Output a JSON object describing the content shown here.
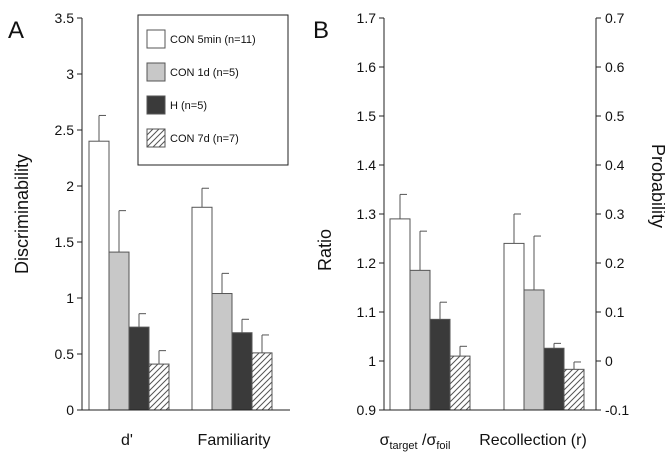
{
  "chart_data": [
    {
      "panel": "A",
      "type": "bar",
      "ylabel": "Discriminability",
      "ylim": [
        0,
        3.5
      ],
      "yticks": [
        "0",
        "0.5",
        "1",
        "1.5",
        "2",
        "2.5",
        "3",
        "3.5"
      ],
      "categories": [
        "d'",
        "Familiarity"
      ],
      "series": [
        {
          "name": "CON 5min (n=11)",
          "fill": "#ffffff",
          "pattern": "none",
          "values": [
            2.4,
            1.81
          ],
          "errors": [
            0.23,
            0.17
          ]
        },
        {
          "name": "CON 1d (n=5)",
          "fill": "#c8c8c8",
          "pattern": "none",
          "values": [
            1.41,
            1.04
          ],
          "errors": [
            0.37,
            0.18
          ]
        },
        {
          "name": "H (n=5)",
          "fill": "#3a3a3a",
          "pattern": "none",
          "values": [
            0.74,
            0.69
          ],
          "errors": [
            0.12,
            0.12
          ]
        },
        {
          "name": "CON 7d (n=7)",
          "fill": "#ffffff",
          "pattern": "hatch",
          "values": [
            0.41,
            0.51
          ],
          "errors": [
            0.12,
            0.16
          ]
        }
      ],
      "legend_position": "top-right"
    },
    {
      "panel": "B",
      "type": "bar",
      "ylabel": "Ratio",
      "y2label": "Probability",
      "ylim": [
        0.9,
        1.7
      ],
      "yticks": [
        "0.9",
        "1",
        "1.1",
        "1.2",
        "1.3",
        "1.4",
        "1.5",
        "1.6",
        "1.7"
      ],
      "y2lim": [
        -0.1,
        0.7
      ],
      "y2ticks": [
        "-0.1",
        "0",
        "0.1",
        "0.2",
        "0.3",
        "0.4",
        "0.5",
        "0.6",
        "0.7"
      ],
      "categories": [
        {
          "base": "σ",
          "sub1": "target",
          "mid": " /σ",
          "sub2": "foil"
        },
        "Recollection (r)"
      ],
      "series": [
        {
          "name": "CON 5min (n=11)",
          "fill": "#ffffff",
          "pattern": "none",
          "values": [
            1.29,
            1.24
          ],
          "errors": [
            0.05,
            0.06
          ]
        },
        {
          "name": "CON 1d (n=5)",
          "fill": "#c8c8c8",
          "pattern": "none",
          "values": [
            1.185,
            1.145
          ],
          "errors": [
            0.08,
            0.11
          ]
        },
        {
          "name": "H (n=5)",
          "fill": "#3a3a3a",
          "pattern": "none",
          "values": [
            1.085,
            1.026
          ],
          "errors": [
            0.035,
            0.01
          ]
        },
        {
          "name": "CON 7d (n=7)",
          "fill": "#ffffff",
          "pattern": "hatch",
          "values": [
            1.01,
            0.983
          ],
          "errors": [
            0.02,
            0.015
          ]
        }
      ]
    }
  ]
}
